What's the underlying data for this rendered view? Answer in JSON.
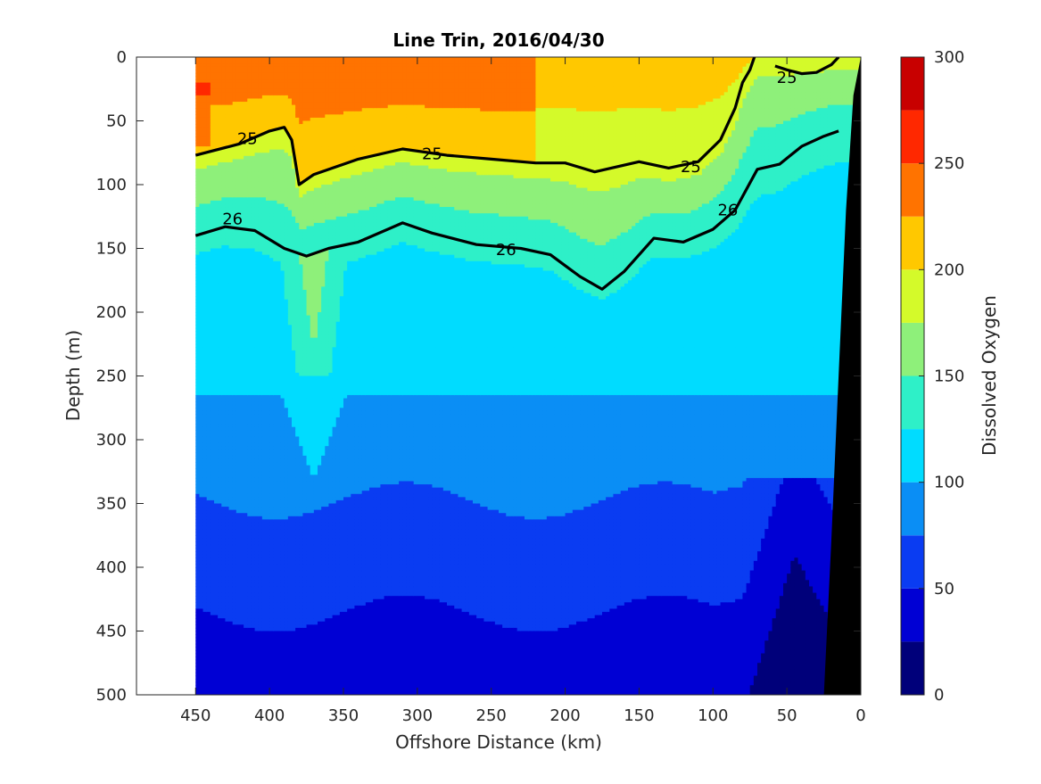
{
  "chart_data": {
    "type": "filled-contour",
    "title": "Line Trin, 2016/04/30",
    "xlabel": "Offshore Distance (km)",
    "ylabel": "Depth (m)",
    "xlim": [
      490,
      0
    ],
    "ylim": [
      0,
      500
    ],
    "x_reversed": true,
    "y_reversed": true,
    "x_ticks": [
      450,
      400,
      350,
      300,
      250,
      200,
      150,
      100,
      50,
      0
    ],
    "y_ticks": [
      0,
      50,
      100,
      150,
      200,
      250,
      300,
      350,
      400,
      450,
      500
    ],
    "data_x_range": [
      450,
      0
    ],
    "colorbar": {
      "label": "Dissolved Oxygen",
      "range": [
        0,
        300
      ],
      "levels": [
        0,
        25,
        50,
        75,
        100,
        125,
        150,
        175,
        200,
        225,
        250,
        275,
        300
      ],
      "ticks": [
        0,
        50,
        100,
        150,
        200,
        250,
        300
      ],
      "colors": [
        "#00007a",
        "#0000d4",
        "#0a3cf2",
        "#0a8ef5",
        "#00dcff",
        "#2ef0c8",
        "#8ef07a",
        "#d4fa2a",
        "#ffc800",
        "#ff7300",
        "#ff2800",
        "#c80000"
      ]
    },
    "isopycnal_levels": [
      25,
      26
    ],
    "isopycnals": [
      {
        "level": 25,
        "x": [
          450,
          420,
          400,
          390,
          385,
          380,
          370,
          340,
          310,
          280,
          250,
          220,
          200,
          180,
          150,
          130,
          110,
          95,
          85,
          80,
          75,
          72
        ],
        "depth": [
          77,
          68,
          58,
          55,
          65,
          100,
          92,
          80,
          72,
          77,
          80,
          83,
          83,
          90,
          82,
          87,
          82,
          65,
          40,
          20,
          10,
          0
        ],
        "labels": [
          {
            "text": "25",
            "x": 415,
            "depth": 64
          },
          {
            "text": "25",
            "x": 290,
            "depth": 76
          },
          {
            "text": "25",
            "x": 115,
            "depth": 86
          }
        ]
      },
      {
        "level": 25,
        "x": [
          58,
          50,
          40,
          30,
          20,
          15
        ],
        "depth": [
          7,
          10,
          13,
          12,
          6,
          0
        ],
        "labels": [
          {
            "text": "25",
            "x": 50,
            "depth": 16
          }
        ]
      },
      {
        "level": 26,
        "x": [
          450,
          430,
          410,
          390,
          375,
          360,
          340,
          310,
          290,
          260,
          230,
          210,
          190,
          175,
          160,
          140,
          120,
          100,
          85,
          70,
          55,
          40,
          25,
          15
        ],
        "depth": [
          140,
          133,
          136,
          150,
          156,
          150,
          145,
          130,
          138,
          147,
          150,
          155,
          172,
          182,
          168,
          142,
          145,
          135,
          120,
          88,
          84,
          70,
          62,
          58
        ],
        "labels": [
          {
            "text": "26",
            "x": 425,
            "depth": 127
          },
          {
            "text": "26",
            "x": 240,
            "depth": 151
          },
          {
            "text": "26",
            "x": 90,
            "depth": 120
          }
        ]
      }
    ],
    "bottom_topography": {
      "x": [
        0,
        5,
        10,
        15,
        20,
        25,
        0
      ],
      "depth": [
        0,
        30,
        120,
        250,
        380,
        500,
        500
      ]
    }
  }
}
